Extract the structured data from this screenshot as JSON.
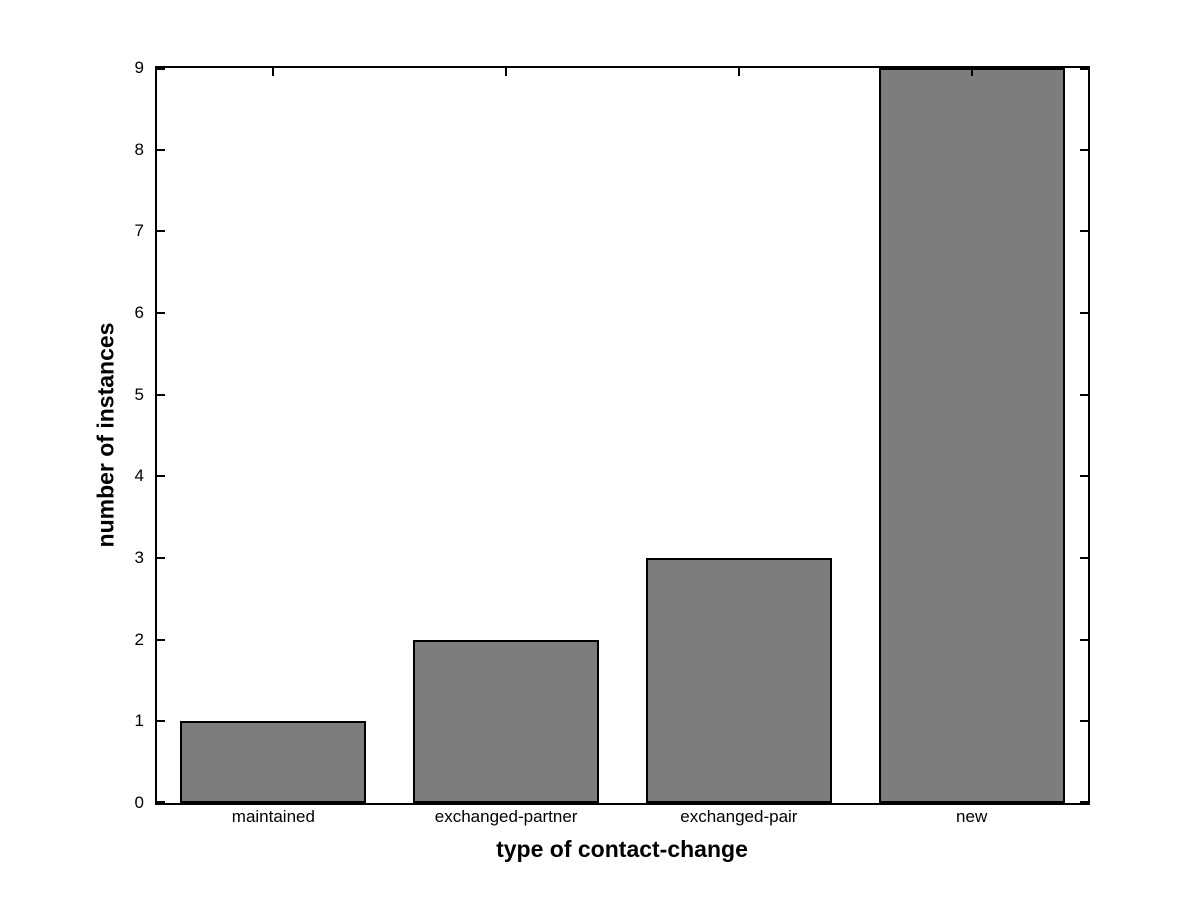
{
  "chart_data": {
    "type": "bar",
    "title": "",
    "xlabel": "type of contact-change",
    "ylabel": "number of instances",
    "categories": [
      "maintained",
      "exchanged-partner",
      "exchanged-pair",
      "new"
    ],
    "values": [
      1,
      2,
      3,
      9
    ],
    "ylim": [
      0,
      9
    ],
    "yticks": [
      0,
      1,
      2,
      3,
      4,
      5,
      6,
      7,
      8,
      9
    ],
    "grid": false,
    "legend": null,
    "bar_width_fraction": 0.8,
    "colors": {
      "bar_fill": "#7d7d7d",
      "bar_edge": "#000000",
      "axis": "#000000",
      "background": "#ffffff",
      "text": "#000000"
    },
    "axis_style": "box-on-with-mirrored-inward-ticks"
  }
}
